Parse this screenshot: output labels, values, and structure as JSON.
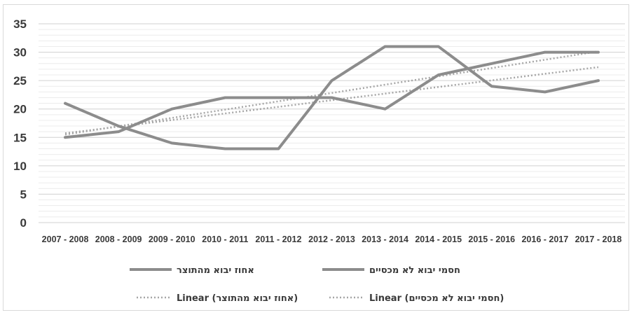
{
  "chart_data": {
    "type": "line",
    "title": "",
    "xlabel": "",
    "ylabel": "",
    "ylim": [
      0,
      35
    ],
    "ytick_step": 5,
    "grid": true,
    "legend_position": "bottom",
    "categories": [
      "2007 - 2008",
      "2008 - 2009",
      "2009 - 2010",
      "2010 - 2011",
      "2011 - 2012",
      "2012 - 2013",
      "2013 - 2014",
      "2014 - 2015",
      "2015 - 2016",
      "2016 - 2017",
      "2017 - 2018"
    ],
    "series": [
      {
        "name": "אחוז יבוא מהתוצר",
        "values": [
          15,
          16,
          20,
          22,
          22,
          22,
          20,
          26,
          28,
          30,
          30
        ],
        "color": "#8c8c8c"
      },
      {
        "name": "חסמי יבוא לא מכסיים",
        "values": [
          21,
          17,
          14,
          13,
          13,
          25,
          31,
          31,
          24,
          23,
          25
        ],
        "color": "#8c8c8c"
      }
    ],
    "trendlines": [
      {
        "name": "Linear (אחוז יבוא מהתוצר)",
        "type": "linear",
        "series": 0,
        "color": "#a6a6a6"
      },
      {
        "name": "Linear (חסמי יבוא לא מכסיים)",
        "type": "linear",
        "series": 1,
        "color": "#a6a6a6"
      }
    ]
  }
}
